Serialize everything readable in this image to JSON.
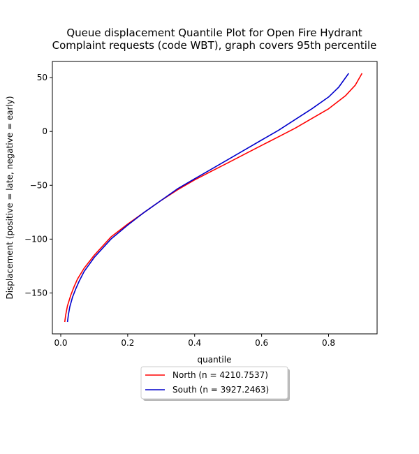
{
  "chart_data": {
    "type": "line",
    "title_lines": [
      "Queue displacement Quantile Plot for Open Fire Hydrant",
      "Complaint  requests (code WBT), graph covers 95th percentile"
    ],
    "xlabel": "quantile",
    "ylabel": "Displacement (positive = late, negative = early)",
    "xlim": [
      -0.025,
      0.945
    ],
    "ylim": [
      -188,
      65
    ],
    "xticks": [
      0.0,
      0.2,
      0.4,
      0.6,
      0.8
    ],
    "xtick_labels": [
      "0.0",
      "0.2",
      "0.4",
      "0.6",
      "0.8"
    ],
    "yticks": [
      50,
      0,
      -50,
      -100,
      -150
    ],
    "ytick_labels": [
      "50",
      "0",
      "−50",
      "−100",
      "−150"
    ],
    "grid": false,
    "legend_position": "below-center",
    "series": [
      {
        "name": "North (n = 4210.7537)",
        "color": "#ff0000",
        "points": [
          [
            0.012,
            -177
          ],
          [
            0.015,
            -170
          ],
          [
            0.02,
            -162
          ],
          [
            0.03,
            -152
          ],
          [
            0.04,
            -144
          ],
          [
            0.05,
            -137
          ],
          [
            0.07,
            -127
          ],
          [
            0.1,
            -115
          ],
          [
            0.15,
            -98
          ],
          [
            0.2,
            -86
          ],
          [
            0.25,
            -75
          ],
          [
            0.3,
            -64
          ],
          [
            0.35,
            -54
          ],
          [
            0.4,
            -45
          ],
          [
            0.45,
            -37
          ],
          [
            0.5,
            -29
          ],
          [
            0.55,
            -21
          ],
          [
            0.6,
            -13
          ],
          [
            0.65,
            -5
          ],
          [
            0.7,
            3
          ],
          [
            0.75,
            12
          ],
          [
            0.8,
            21
          ],
          [
            0.85,
            33
          ],
          [
            0.88,
            43
          ],
          [
            0.9,
            54
          ]
        ]
      },
      {
        "name": "South (n = 3927.2463)",
        "color": "#0000cc",
        "points": [
          [
            0.02,
            -177
          ],
          [
            0.023,
            -170
          ],
          [
            0.027,
            -163
          ],
          [
            0.035,
            -154
          ],
          [
            0.045,
            -146
          ],
          [
            0.055,
            -139
          ],
          [
            0.07,
            -130
          ],
          [
            0.1,
            -117
          ],
          [
            0.15,
            -100
          ],
          [
            0.2,
            -87
          ],
          [
            0.25,
            -75
          ],
          [
            0.3,
            -64
          ],
          [
            0.35,
            -53
          ],
          [
            0.4,
            -44
          ],
          [
            0.45,
            -35
          ],
          [
            0.5,
            -26
          ],
          [
            0.55,
            -17
          ],
          [
            0.6,
            -8
          ],
          [
            0.65,
            1
          ],
          [
            0.7,
            11
          ],
          [
            0.75,
            21
          ],
          [
            0.8,
            32
          ],
          [
            0.83,
            41
          ],
          [
            0.86,
            54
          ]
        ]
      }
    ]
  }
}
